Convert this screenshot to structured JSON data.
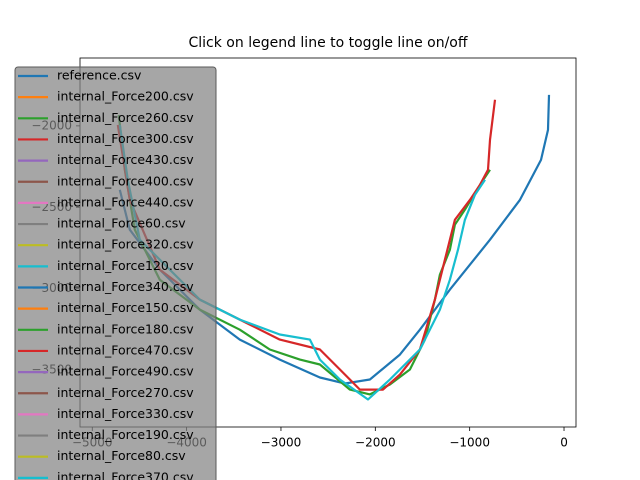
{
  "chart_data": {
    "type": "line",
    "title": "Click on legend line to toggle line on/off",
    "xlim": [
      -5130,
      127
    ],
    "ylim": [
      -3850,
      -1583
    ],
    "xticks": [
      {
        "value": -5000,
        "label": "−5000"
      },
      {
        "value": -4000,
        "label": "−4000"
      },
      {
        "value": -3000,
        "label": "−3000"
      },
      {
        "value": -2000,
        "label": "−2000"
      },
      {
        "value": -1000,
        "label": "−1000"
      },
      0
    ],
    "yticks": [
      {
        "value": -2000,
        "label": "−2000"
      },
      {
        "value": -2500,
        "label": "−2500"
      },
      {
        "value": -3000,
        "label": "−3000"
      },
      {
        "value": -3500,
        "label": "−3500"
      }
    ],
    "series": [
      {
        "name": "reference.csv",
        "color": "#1f77b4",
        "x": [
          -159,
          -170,
          -244,
          -467,
          -785,
          -1209,
          -1527,
          -1739,
          -2057,
          -2322,
          -2587,
          -3012,
          -3436,
          -3860,
          -4284,
          -4602,
          -4708
        ],
        "values": [
          -1810,
          -2025,
          -2209,
          -2454,
          -2699,
          -3006,
          -3252,
          -3405,
          -3558,
          -3583,
          -3546,
          -3436,
          -3313,
          -3129,
          -2883,
          -2638,
          -2393
        ]
      },
      {
        "name": "internal_Force200.csv",
        "color": "#ff7f0e",
        "x": [],
        "values": []
      },
      {
        "name": "internal_Force260.csv",
        "color": "#2ca02c",
        "x": [
          -4719,
          -4655,
          -4549,
          -4284,
          -3860,
          -3436,
          -3118,
          -2799,
          -2587,
          -2269,
          -2057,
          -1845,
          -1633,
          -1474,
          -1368,
          -1315,
          -1209,
          -1156,
          -1050,
          -891,
          -785
        ],
        "values": [
          -1933,
          -2270,
          -2638,
          -2945,
          -3129,
          -3252,
          -3374,
          -3436,
          -3466,
          -3620,
          -3650,
          -3589,
          -3497,
          -3313,
          -3067,
          -2914,
          -2761,
          -2607,
          -2515,
          -2362,
          -2270
        ]
      },
      {
        "name": "internal_Force300.csv",
        "color": "#d62728",
        "x": [
          -4729,
          -4602,
          -4284,
          -3860,
          -3330,
          -3012,
          -2587,
          -2375,
          -2163,
          -1919,
          -1739,
          -1527,
          -1368,
          -1262,
          -1156,
          -997,
          -891,
          -806,
          -785,
          -732
        ],
        "values": [
          -1994,
          -2454,
          -2883,
          -3067,
          -3221,
          -3313,
          -3374,
          -3497,
          -3620,
          -3620,
          -3528,
          -3374,
          -3067,
          -2822,
          -2577,
          -2454,
          -2362,
          -2270,
          -2086,
          -1840
        ]
      },
      {
        "name": "internal_Force430.csv",
        "color": "#9467bd",
        "x": [],
        "values": []
      },
      {
        "name": "internal_Force400.csv",
        "color": "#8c564b",
        "x": [],
        "values": []
      },
      {
        "name": "internal_Force440.csv",
        "color": "#e377c2",
        "x": [],
        "values": []
      },
      {
        "name": "internal_Force60.csv",
        "color": "#7f7f7f",
        "x": [],
        "values": []
      },
      {
        "name": "internal_Force320.csv",
        "color": "#bcbd22",
        "x": [],
        "values": []
      },
      {
        "name": "internal_Force120.csv",
        "color": "#17becf",
        "x": [
          -4708,
          -4623,
          -4496,
          -3860,
          -3436,
          -3012,
          -2693,
          -2587,
          -2375,
          -2078,
          -1845,
          -1527,
          -1315,
          -1209,
          -1124,
          -1050,
          -944,
          -838
        ],
        "values": [
          -1994,
          -2331,
          -2699,
          -3067,
          -3190,
          -3282,
          -3313,
          -3436,
          -3558,
          -3681,
          -3558,
          -3374,
          -3129,
          -2945,
          -2761,
          -2577,
          -2423,
          -2331
        ]
      },
      {
        "name": "internal_Force340.csv",
        "color": "#1f77b4",
        "x": [],
        "values": []
      },
      {
        "name": "internal_Force150.csv",
        "color": "#ff7f0e",
        "x": [],
        "values": []
      },
      {
        "name": "internal_Force180.csv",
        "color": "#2ca02c",
        "x": [],
        "values": []
      },
      {
        "name": "internal_Force470.csv",
        "color": "#d62728",
        "x": [],
        "values": []
      },
      {
        "name": "internal_Force490.csv",
        "color": "#9467bd",
        "x": [],
        "values": []
      },
      {
        "name": "internal_Force270.csv",
        "color": "#8c564b",
        "x": [],
        "values": []
      },
      {
        "name": "internal_Force330.csv",
        "color": "#e377c2",
        "x": [],
        "values": []
      },
      {
        "name": "internal_Force190.csv",
        "color": "#7f7f7f",
        "x": [],
        "values": []
      },
      {
        "name": "internal_Force80.csv",
        "color": "#bcbd22",
        "x": [],
        "values": []
      },
      {
        "name": "internal_Force370.csv",
        "color": "#17becf",
        "x": [],
        "values": []
      }
    ]
  }
}
